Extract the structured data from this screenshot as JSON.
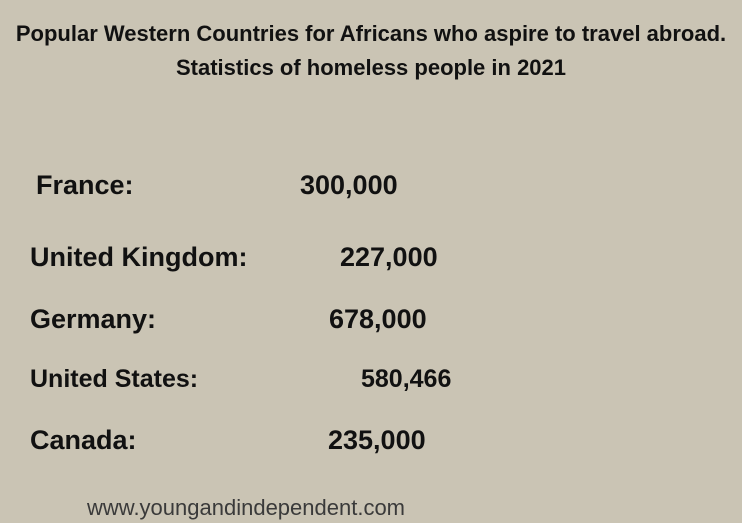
{
  "header": {
    "title": "Popular Western Countries for Africans who aspire to travel abroad.",
    "subtitle": "Statistics of homeless people in 2021"
  },
  "rows": [
    {
      "country": "France:",
      "value": "300,000"
    },
    {
      "country": "United Kingdom:",
      "value": "227,000"
    },
    {
      "country": "Germany:",
      "value": "678,000"
    },
    {
      "country": "United States:",
      "value": "580,466"
    },
    {
      "country": "Canada:",
      "value": "235,000"
    }
  ],
  "footer": {
    "url": "www.youngandindependent.com"
  }
}
